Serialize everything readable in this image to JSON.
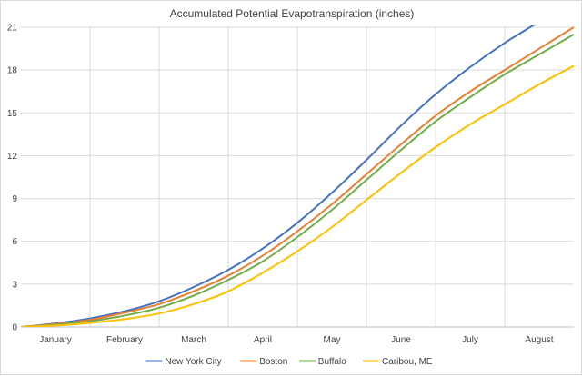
{
  "chart_data": {
    "type": "line",
    "title": "Accumulated Potential Evapotranspiration (inches)",
    "xlabel": "",
    "ylabel": "",
    "ylim": [
      0,
      21
    ],
    "yticks": [
      0,
      3,
      6,
      9,
      12,
      15,
      18,
      21
    ],
    "months": [
      "January",
      "February",
      "March",
      "April",
      "May",
      "June",
      "July",
      "August"
    ],
    "xlim": [
      0,
      8
    ],
    "grid": true,
    "legend_position": "bottom",
    "x": [
      0,
      0.5,
      1,
      1.5,
      2,
      2.5,
      3,
      3.5,
      4,
      4.5,
      5,
      5.5,
      6,
      6.5,
      7,
      7.5,
      8
    ],
    "series": [
      {
        "name": "New York City",
        "color": "#4472c4",
        "values": [
          0,
          0.25,
          0.6,
          1.1,
          1.8,
          2.8,
          4.0,
          5.5,
          7.3,
          9.4,
          11.7,
          14.1,
          16.3,
          18.2,
          19.9,
          21.4,
          23.0
        ]
      },
      {
        "name": "Boston",
        "color": "#ed7d31",
        "values": [
          0,
          0.2,
          0.5,
          1.0,
          1.6,
          2.5,
          3.6,
          5.0,
          6.7,
          8.6,
          10.7,
          12.8,
          14.8,
          16.5,
          18.0,
          19.5,
          21.0
        ]
      },
      {
        "name": "Buffalo",
        "color": "#70ad47",
        "values": [
          0,
          0.15,
          0.4,
          0.8,
          1.35,
          2.2,
          3.3,
          4.6,
          6.3,
          8.2,
          10.3,
          12.4,
          14.4,
          16.1,
          17.7,
          19.1,
          20.5
        ]
      },
      {
        "name": "Caribou, ME",
        "color": "#ffc000",
        "values": [
          0,
          0.1,
          0.28,
          0.55,
          0.95,
          1.6,
          2.5,
          3.8,
          5.3,
          7.0,
          8.9,
          10.8,
          12.6,
          14.2,
          15.6,
          17.0,
          18.3
        ]
      }
    ]
  }
}
